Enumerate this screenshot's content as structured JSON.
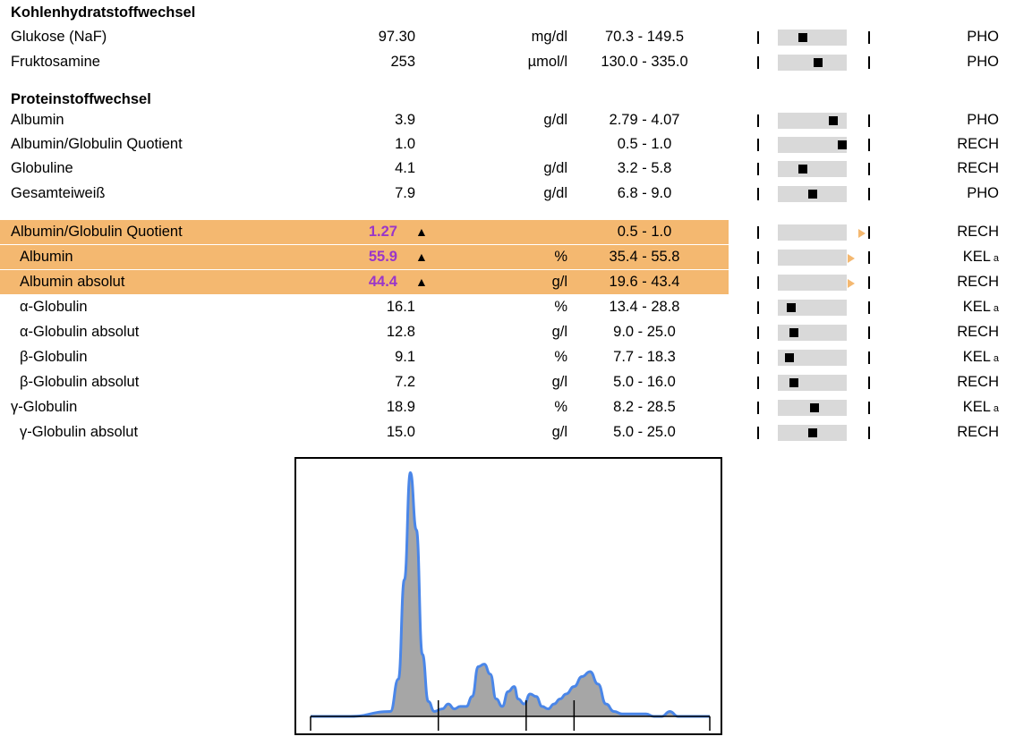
{
  "sections": {
    "carb": "Kohlenhydratstoffwechsel",
    "protein": "Proteinstoffwechsel"
  },
  "rows": [
    {
      "name": "Glukose (NaF)",
      "value": "97.30",
      "flag": "",
      "unit": "mg/dl",
      "ref": "70.3 - 149.5",
      "lab": "PHO",
      "note": "",
      "marker": 0.35
    },
    {
      "name": "Fruktosamine",
      "value": "253",
      "flag": "",
      "unit": "µmol/l",
      "ref": "130.0 - 335.0",
      "lab": "PHO",
      "note": "",
      "marker": 0.6
    },
    {
      "name": "Albumin",
      "value": "3.9",
      "flag": "",
      "unit": "g/dl",
      "ref": "2.79 - 4.07",
      "lab": "PHO",
      "note": "",
      "marker": 0.85
    },
    {
      "name": "Albumin/Globulin Quotient",
      "value": "1.0",
      "flag": "",
      "unit": "",
      "ref": "0.5 - 1.0",
      "lab": "RECH",
      "note": "",
      "marker": 1.0
    },
    {
      "name": "Globuline",
      "value": "4.1",
      "flag": "",
      "unit": "g/dl",
      "ref": "3.2 - 5.8",
      "lab": "RECH",
      "note": "",
      "marker": 0.35
    },
    {
      "name": "Gesamteiweiß",
      "value": "7.9",
      "flag": "",
      "unit": "g/dl",
      "ref": "6.8 - 9.0",
      "lab": "PHO",
      "note": "",
      "marker": 0.5
    },
    {
      "name": "Albumin/Globulin Quotient",
      "value": "1.27",
      "flag": "▲",
      "unit": "",
      "ref": "0.5 - 1.0",
      "lab": "RECH",
      "note": "",
      "marker": null
    },
    {
      "name": "Albumin",
      "value": "55.9",
      "flag": "▲",
      "unit": "%",
      "ref": "35.4 - 55.8",
      "lab": "KEL",
      "note": "a",
      "marker": null
    },
    {
      "name": "Albumin absolut",
      "value": "44.4",
      "flag": "▲",
      "unit": "g/l",
      "ref": "19.6 - 43.4",
      "lab": "RECH",
      "note": "",
      "marker": null
    },
    {
      "name": "α-Globulin",
      "value": "16.1",
      "flag": "",
      "unit": "%",
      "ref": "13.4 - 28.8",
      "lab": "KEL",
      "note": "a",
      "marker": 0.15
    },
    {
      "name": "α-Globulin absolut",
      "value": "12.8",
      "flag": "",
      "unit": "g/l",
      "ref": "9.0 - 25.0",
      "lab": "RECH",
      "note": "",
      "marker": 0.2
    },
    {
      "name": "β-Globulin",
      "value": "9.1",
      "flag": "",
      "unit": "%",
      "ref": "7.7 - 18.3",
      "lab": "KEL",
      "note": "a",
      "marker": 0.12
    },
    {
      "name": "β-Globulin absolut",
      "value": "7.2",
      "flag": "",
      "unit": "g/l",
      "ref": "5.0 - 16.0",
      "lab": "RECH",
      "note": "",
      "marker": 0.2
    },
    {
      "name": "γ-Globulin",
      "value": "18.9",
      "flag": "",
      "unit": "%",
      "ref": "8.2 - 28.5",
      "lab": "KEL",
      "note": "a",
      "marker": 0.53
    },
    {
      "name": "γ-Globulin absolut",
      "value": "15.0",
      "flag": "",
      "unit": "g/l",
      "ref": "5.0 - 25.0",
      "lab": "RECH",
      "note": "",
      "marker": 0.5
    }
  ],
  "colors": {
    "highlight": "#f4b870",
    "abnormal_value": "#9a36c9",
    "curve_line": "#4a86e8",
    "curve_fill": "#a6a6a6",
    "range_bar": "#d9d9d9"
  },
  "chart_data": {
    "type": "area",
    "xlim": [
      0,
      1
    ],
    "ylim": [
      0,
      1
    ],
    "x": [
      0.0,
      0.1,
      0.2,
      0.22,
      0.235,
      0.25,
      0.265,
      0.28,
      0.295,
      0.31,
      0.33,
      0.345,
      0.36,
      0.375,
      0.39,
      0.405,
      0.42,
      0.435,
      0.45,
      0.465,
      0.48,
      0.495,
      0.51,
      0.52,
      0.535,
      0.55,
      0.565,
      0.58,
      0.595,
      0.61,
      0.625,
      0.64,
      0.66,
      0.68,
      0.7,
      0.72,
      0.74,
      0.76,
      0.78,
      0.8,
      0.82,
      0.84,
      0.86,
      0.88,
      0.9,
      0.92,
      0.94,
      0.96,
      1.0
    ],
    "y": [
      0.0,
      0.0,
      0.02,
      0.15,
      0.55,
      0.98,
      0.75,
      0.25,
      0.06,
      0.02,
      0.03,
      0.05,
      0.03,
      0.04,
      0.04,
      0.08,
      0.2,
      0.21,
      0.17,
      0.07,
      0.04,
      0.1,
      0.12,
      0.07,
      0.05,
      0.09,
      0.08,
      0.04,
      0.03,
      0.05,
      0.07,
      0.09,
      0.12,
      0.16,
      0.18,
      0.13,
      0.05,
      0.02,
      0.01,
      0.01,
      0.01,
      0.01,
      0.0,
      0.0,
      0.02,
      0.0,
      0.0,
      0.0,
      0.0
    ],
    "fraction_dividers": [
      0.32,
      0.54,
      0.66
    ]
  }
}
